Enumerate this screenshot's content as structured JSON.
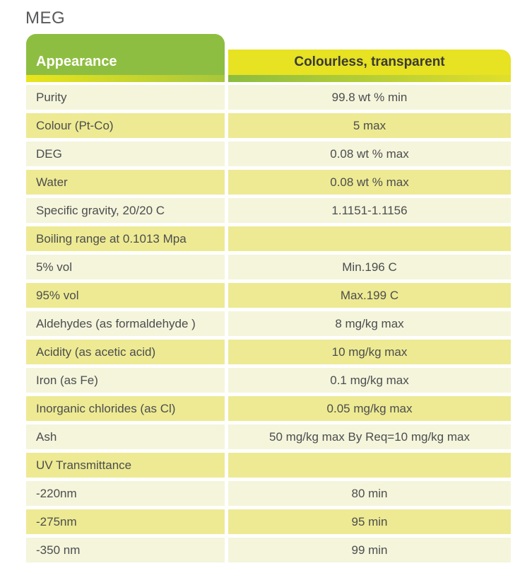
{
  "page": {
    "title": "MEG"
  },
  "colors": {
    "header_green": "#8EBE41",
    "header_yellow": "#E7E222",
    "row_pale": "#F4F5DB",
    "row_yellow": "#EDEA93",
    "body_text": "#4D4D4F",
    "header_left_text": "#FFFFFF",
    "header_right_text": "#3A3A33",
    "title_text": "#58595B"
  },
  "table": {
    "header": {
      "property": "Appearance",
      "value": "Colourless, transparent"
    },
    "rows": [
      {
        "property": "Purity",
        "value": "99.8 wt % min"
      },
      {
        "property": "Colour (Pt-Co)",
        "value": "5 max"
      },
      {
        "property": "DEG",
        "value": "0.08 wt % max"
      },
      {
        "property": "Water",
        "value": "0.08 wt % max"
      },
      {
        "property": "Specific gravity, 20/20 C",
        "value": "1.1151-1.1156"
      },
      {
        "property": "Boiling range at 0.1013 Mpa",
        "value": ""
      },
      {
        "property": "5% vol",
        "value": "Min.196 C"
      },
      {
        "property": "95% vol",
        "value": "Max.199 C"
      },
      {
        "property": "Aldehydes (as formaldehyde )",
        "value": "8 mg/kg max"
      },
      {
        "property": "Acidity (as acetic acid)",
        "value": "10 mg/kg max"
      },
      {
        "property": "Iron (as Fe)",
        "value": "0.1 mg/kg max"
      },
      {
        "property": "Inorganic chlorides (as Cl)",
        "value": "0.05 mg/kg max"
      },
      {
        "property": "Ash",
        "value": "50 mg/kg max By Req=10 mg/kg max"
      },
      {
        "property": "UV Transmittance",
        "value": ""
      },
      {
        "property": "-220nm",
        "value": "80 min"
      },
      {
        "property": "-275nm",
        "value": "95 min"
      },
      {
        "property": "-350 nm",
        "value": "99 min"
      }
    ]
  }
}
